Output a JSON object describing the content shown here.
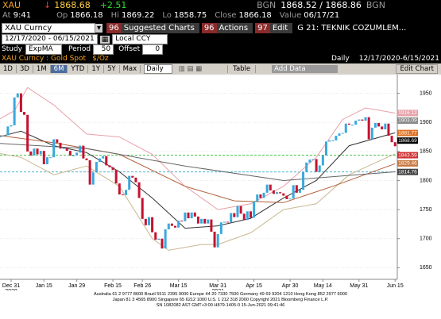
{
  "header": {
    "ticker": "XAU",
    "arrow": "↓",
    "last": "1868.68",
    "change": "+2.51",
    "bid_source": "BGN",
    "bid_ask": "1868.52 / 1868.86",
    "ask_source": "BGN"
  },
  "quote": {
    "at_label": "At",
    "at": "9:41",
    "op_label": "Op",
    "op": "1866.18",
    "hi_label": "Hi",
    "hi": "1869.22",
    "lo_label": "Lo",
    "lo": "1858.75",
    "close_label": "Close",
    "close": "1866.18",
    "value_label": "Value",
    "value": "06/17/21"
  },
  "command": {
    "security": "XAU Curncy",
    "buttons": [
      {
        "num": "96",
        "label": "Suggested Charts"
      },
      {
        "num": "96",
        "label": "Actions"
      },
      {
        "num": "97",
        "label": "Edit"
      }
    ],
    "page": "G 21: TEKNIK COZUMLEM..."
  },
  "range": {
    "dates": "12/17/2020 - 06/15/2021",
    "currency": "Local CCY"
  },
  "study": {
    "label": "Study",
    "name": "ExpMA",
    "period_label": "Period",
    "period": "50",
    "offset_label": "Offset",
    "offset": "0"
  },
  "toolbar": {
    "periods": [
      "1D",
      "3D",
      "1M",
      "6M",
      "YTD",
      "1Y",
      "5Y",
      "Max"
    ],
    "frequency": "Daily",
    "table": "Table",
    "add_data": "Add Data",
    "edit_chart": "Edit Chart"
  },
  "chart_data": {
    "type": "candlestick",
    "title": "XAU Curncy : Gold Spot",
    "unit": "$/Oz",
    "frequency": "Daily",
    "range": "12/17/2020-6/15/2021",
    "categories": [
      null,
      null,
      null,
      null,
      null,
      null,
      null,
      "Dec 31\n2020",
      null,
      null,
      null,
      null,
      null,
      null,
      null,
      null,
      null,
      "Jan 15",
      null,
      null,
      null,
      null,
      null,
      null,
      null,
      null,
      null,
      "Jan 29",
      null,
      null,
      null,
      null,
      null,
      null,
      null,
      null,
      null,
      null,
      "Feb 15",
      null,
      null,
      null,
      null,
      null,
      null,
      null,
      null,
      "Feb 26",
      null,
      null,
      null,
      null,
      null,
      null,
      null,
      null,
      null,
      null,
      "Mar 15",
      null,
      null,
      null,
      null,
      null,
      null,
      null,
      null,
      null,
      null,
      null,
      "Mar 31\n2021",
      null,
      null,
      null,
      null,
      null,
      null,
      null,
      null,
      null,
      null,
      "Apr 15",
      null,
      null,
      null,
      null,
      null,
      null,
      null,
      null,
      null,
      null,
      "Apr 30",
      null,
      null,
      null,
      null,
      null,
      null,
      null,
      null,
      null,
      "May 14",
      null,
      null,
      null,
      null,
      null,
      null,
      null,
      null,
      null,
      null,
      "May 31",
      null,
      null,
      null,
      null,
      null,
      null,
      null,
      null,
      null,
      null,
      "Jun 15"
    ],
    "open": [
      1881,
      1872,
      1860,
      1875,
      1876,
      1877,
      1878,
      1893,
      1895,
      1943,
      1950,
      1918,
      1913,
      1850,
      1843,
      1855,
      1845,
      1851,
      1828,
      1840,
      1840,
      1871,
      1865,
      1855,
      1856,
      1851,
      1843,
      1843,
      1848,
      1860,
      1838,
      1835,
      1793,
      1814,
      1832,
      1838,
      1842,
      1826,
      1823,
      1818,
      1795,
      1776,
      1775,
      1784,
      1808,
      1805,
      1797,
      1770,
      1734,
      1723,
      1737,
      1711,
      1698,
      1700,
      1683,
      1716,
      1726,
      1722,
      1719,
      1731,
      1730,
      1745,
      1735,
      1745,
      1738,
      1726,
      1734,
      1726,
      1733,
      1712,
      1685,
      1708,
      1728,
      1729,
      1728,
      1744,
      1737,
      1756,
      1743,
      1732,
      1747,
      1736,
      1764,
      1776,
      1770,
      1779,
      1793,
      1783,
      1777,
      1780,
      1778,
      1774,
      1768,
      1769,
      1792,
      1779,
      1784,
      1815,
      1831,
      1836,
      1837,
      1815,
      1826,
      1843,
      1867,
      1869,
      1869,
      1877,
      1881,
      1882,
      1898,
      1896,
      1896,
      1903,
      1905,
      1903,
      1909,
      1871,
      1891,
      1899,
      1893,
      1888,
      1898,
      1877,
      1866
    ],
    "close": [
      1872,
      1860,
      1875,
      1876,
      1877,
      1878,
      1893,
      1895,
      1943,
      1950,
      1918,
      1913,
      1850,
      1843,
      1855,
      1845,
      1851,
      1828,
      1840,
      1840,
      1871,
      1865,
      1855,
      1856,
      1851,
      1843,
      1843,
      1848,
      1860,
      1838,
      1835,
      1793,
      1814,
      1832,
      1838,
      1842,
      1826,
      1823,
      1818,
      1795,
      1776,
      1775,
      1784,
      1808,
      1805,
      1797,
      1770,
      1734,
      1723,
      1737,
      1711,
      1698,
      1700,
      1683,
      1716,
      1726,
      1722,
      1719,
      1731,
      1730,
      1745,
      1735,
      1745,
      1738,
      1726,
      1734,
      1726,
      1733,
      1712,
      1685,
      1708,
      1728,
      1729,
      1728,
      1744,
      1737,
      1756,
      1743,
      1732,
      1747,
      1736,
      1764,
      1776,
      1770,
      1779,
      1793,
      1783,
      1777,
      1780,
      1778,
      1774,
      1768,
      1769,
      1792,
      1779,
      1784,
      1815,
      1831,
      1836,
      1837,
      1815,
      1826,
      1843,
      1867,
      1869,
      1869,
      1877,
      1881,
      1882,
      1898,
      1896,
      1896,
      1903,
      1905,
      1903,
      1909,
      1871,
      1891,
      1899,
      1893,
      1888,
      1898,
      1877,
      1866,
      1859
    ],
    "up_color": "#3aa8dc",
    "down_color": "#c4122f",
    "ylim": [
      1630,
      1970
    ],
    "yticks": [
      1650,
      1700,
      1750,
      1800,
      1850,
      1900,
      1950
    ],
    "grid": true,
    "lines": [
      {
        "color": "#e8a0a8",
        "x": [
          0,
          8,
          12,
          20,
          30,
          40,
          50,
          60,
          70,
          80,
          90,
          100,
          108,
          115,
          124
        ],
        "values": [
          1895,
          1920,
          1960,
          1930,
          1880,
          1875,
          1845,
          1790,
          1750,
          1760,
          1790,
          1840,
          1905,
          1925,
          1916
        ]
      },
      {
        "color": "#c8b890",
        "x": [
          0,
          10,
          20,
          30,
          40,
          50,
          55,
          65,
          70,
          80,
          90,
          100,
          110,
          124
        ],
        "values": [
          1850,
          1840,
          1810,
          1825,
          1790,
          1700,
          1680,
          1690,
          1690,
          1710,
          1750,
          1760,
          1810,
          1846
        ]
      },
      {
        "color": "#333333",
        "x": [
          0,
          10,
          20,
          30,
          40,
          50,
          60,
          70,
          80,
          90,
          100,
          110,
          124
        ],
        "values": [
          1870,
          1885,
          1860,
          1848,
          1815,
          1770,
          1718,
          1722,
          1735,
          1770,
          1800,
          1860,
          1882
        ]
      },
      {
        "color": "#b0603a",
        "x": [
          0,
          20,
          40,
          60,
          75,
          90,
          105,
          124
        ],
        "values": [
          1880,
          1865,
          1845,
          1790,
          1765,
          1762,
          1790,
          1829
        ]
      },
      {
        "color": "#666666",
        "x": [
          0,
          30,
          60,
          90,
          124
        ],
        "values": [
          1865,
          1855,
          1825,
          1800,
          1815
        ]
      }
    ],
    "price_labels": [
      {
        "value": 1916.12,
        "color": "#e8a0a8"
      },
      {
        "value": 1903.09,
        "color": "#8a8a8a"
      },
      {
        "value": 1881.77,
        "color": "#e07020"
      },
      {
        "value": 1868.69,
        "color": "#000000"
      },
      {
        "value": 1843.59,
        "color": "#d03030",
        "line": "#33bb33"
      },
      {
        "value": 1829.46,
        "color": "#c87840"
      },
      {
        "value": 1814.76,
        "color": "#444444",
        "line": "#33aacc"
      }
    ]
  },
  "footer": {
    "lines": [
      "Australia 61 2 9777 8600  Brazil 5511 2395 9000  Europe 44 20 7330 7500  Germany 49 69 9204 1210  Hong Kong 852 2977 6000",
      "Japan 81 3 4565 8900    Singapore 65 6212 1000    U.S. 1 212 318 2000    Copyright 2021 Bloomberg Finance L.P.",
      "SN 1082082 AST  GMT+3:00 H879-1405-0 15-Jun-2021 09:41:46"
    ]
  }
}
